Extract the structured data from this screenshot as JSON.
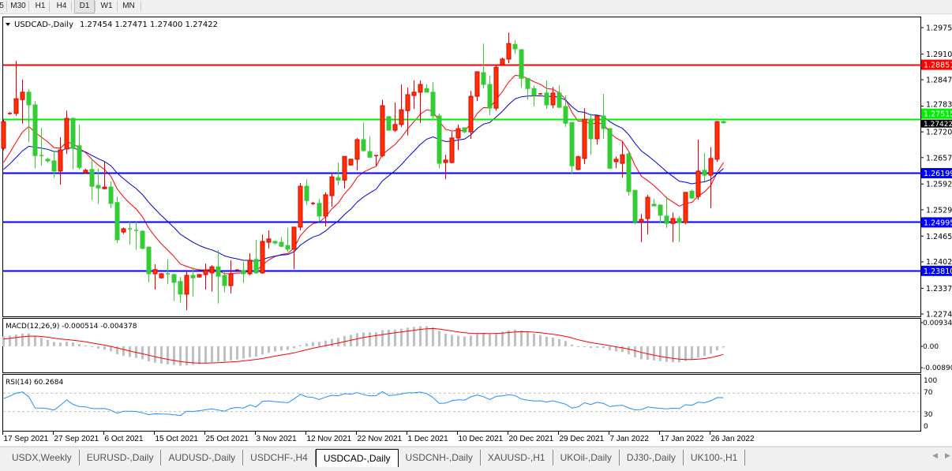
{
  "toolbar": {
    "timeframes": [
      {
        "label": "5",
        "active": false
      },
      {
        "label": "M30",
        "active": false
      },
      {
        "label": "H1",
        "active": false
      },
      {
        "label": "H4",
        "active": false
      },
      {
        "label": "D1",
        "active": true
      },
      {
        "label": "W1",
        "active": false
      },
      {
        "label": "MN",
        "active": false
      }
    ]
  },
  "chart_data": {
    "type": "candlestick",
    "symbol_header": "USDCAD-,Daily",
    "ohlc_readout": "1.27454 1.27471 1.27400 1.27422",
    "current_price": "1.27422",
    "colors": {
      "bull": "#ff3300",
      "bull_border": "#e00000",
      "bear": "#33cc33",
      "bear_border": "#33cc33",
      "fast_ma": "#ff0000",
      "slow_ma": "#0000cc"
    },
    "ylim": [
      1.22745,
      1.2975
    ],
    "y_ticks": [
      "1.29750",
      "1.29105",
      "1.28475",
      "1.27830",
      "1.27200",
      "1.26570",
      "1.25925",
      "1.25295",
      "1.24650",
      "1.24020",
      "1.23375",
      "1.22745"
    ],
    "horizontal_lines": [
      {
        "price": "1.28851",
        "color": "#ff0000"
      },
      {
        "price": "1.27515",
        "color": "#00ee00"
      },
      {
        "price": "1.26199",
        "color": "#0000ff"
      },
      {
        "price": "1.24995",
        "color": "#0000ff"
      },
      {
        "price": "1.23810",
        "color": "#0000ff"
      }
    ],
    "x_labels": [
      {
        "label": "17 Sep 2021",
        "bar": 0
      },
      {
        "label": "27 Sep 2021",
        "bar": 8
      },
      {
        "label": "6 Oct 2021",
        "bar": 16
      },
      {
        "label": "15 Oct 2021",
        "bar": 24
      },
      {
        "label": "25 Oct 2021",
        "bar": 32
      },
      {
        "label": "3 Nov 2021",
        "bar": 40
      },
      {
        "label": "12 Nov 2021",
        "bar": 48
      },
      {
        "label": "22 Nov 2021",
        "bar": 56
      },
      {
        "label": "1 Dec 2021",
        "bar": 64
      },
      {
        "label": "10 Dec 2021",
        "bar": 72
      },
      {
        "label": "20 Dec 2021",
        "bar": 80
      },
      {
        "label": "29 Dec 2021",
        "bar": 88
      },
      {
        "label": "7 Jan 2022",
        "bar": 96
      },
      {
        "label": "17 Jan 2022",
        "bar": 104
      },
      {
        "label": "26 Jan 2022",
        "bar": 112
      }
    ],
    "candles_ohlc": [
      [
        1.268,
        1.275,
        1.2675,
        1.2745
      ],
      [
        1.2765,
        1.2768,
        1.2762,
        1.2765
      ],
      [
        1.2765,
        1.2894,
        1.2759,
        1.2801
      ],
      [
        1.2799,
        1.2848,
        1.274,
        1.2817
      ],
      [
        1.2817,
        1.2824,
        1.2695,
        1.2786
      ],
      [
        1.2786,
        1.2795,
        1.2631,
        1.2662
      ],
      [
        1.2662,
        1.273,
        1.2637,
        1.266
      ],
      [
        1.2653,
        1.2657,
        1.2645,
        1.2649
      ],
      [
        1.2649,
        1.2672,
        1.2608,
        1.2624
      ],
      [
        1.2624,
        1.2707,
        1.2591,
        1.2676
      ],
      [
        1.2678,
        1.2772,
        1.2666,
        1.2753
      ],
      [
        1.2753,
        1.2755,
        1.2628,
        1.268
      ],
      [
        1.2686,
        1.2738,
        1.2628,
        1.2633
      ],
      [
        1.262,
        1.263,
        1.2618,
        1.2626
      ],
      [
        1.2628,
        1.2655,
        1.2554,
        1.2587
      ],
      [
        1.2589,
        1.263,
        1.2543,
        1.2583
      ],
      [
        1.2581,
        1.2647,
        1.2579,
        1.2585
      ],
      [
        1.2585,
        1.2599,
        1.2533,
        1.2545
      ],
      [
        1.2547,
        1.2562,
        1.2448,
        1.2456
      ],
      [
        1.2475,
        1.2486,
        1.247,
        1.2483
      ],
      [
        1.2483,
        1.25,
        1.2444,
        1.2481
      ],
      [
        1.2479,
        1.25,
        1.2431,
        1.2477
      ],
      [
        1.2477,
        1.2479,
        1.2433,
        1.2435
      ],
      [
        1.2438,
        1.244,
        1.2352,
        1.2373
      ],
      [
        1.2373,
        1.2396,
        1.2334,
        1.2383
      ],
      [
        1.2363,
        1.2375,
        1.2361,
        1.2373
      ],
      [
        1.2373,
        1.2408,
        1.2348,
        1.2371
      ],
      [
        1.2371,
        1.2373,
        1.2307,
        1.2352
      ],
      [
        1.2354,
        1.2365,
        1.2303,
        1.2323
      ],
      [
        1.2323,
        1.2382,
        1.2284,
        1.2369
      ],
      [
        1.2369,
        1.2388,
        1.2317,
        1.2363
      ],
      [
        1.2365,
        1.2373,
        1.2363,
        1.2371
      ],
      [
        1.2371,
        1.2398,
        1.2334,
        1.2381
      ],
      [
        1.2375,
        1.2394,
        1.2329,
        1.239
      ],
      [
        1.239,
        1.2431,
        1.23,
        1.2367
      ],
      [
        1.2369,
        1.2379,
        1.2327,
        1.2344
      ],
      [
        1.2344,
        1.2406,
        1.2325,
        1.2373
      ],
      [
        1.2382,
        1.2384,
        1.238,
        1.2382
      ],
      [
        1.2381,
        1.2402,
        1.235,
        1.2373
      ],
      [
        1.2373,
        1.2423,
        1.2369,
        1.2406
      ],
      [
        1.2408,
        1.2456,
        1.2373,
        1.2375
      ],
      [
        1.2375,
        1.2469,
        1.2373,
        1.2452
      ],
      [
        1.245,
        1.2479,
        1.2435,
        1.2458
      ],
      [
        1.2452,
        1.2454,
        1.2444,
        1.2448
      ],
      [
        1.245,
        1.2463,
        1.2438,
        1.244
      ],
      [
        1.2442,
        1.2485,
        1.2427,
        1.2433
      ],
      [
        1.2433,
        1.2487,
        1.2384,
        1.2487
      ],
      [
        1.2487,
        1.2595,
        1.2479,
        1.2587
      ],
      [
        1.2587,
        1.2604,
        1.2541,
        1.2552
      ],
      [
        1.2545,
        1.2549,
        1.2541,
        1.2545
      ],
      [
        1.2545,
        1.2556,
        1.2502,
        1.2514
      ],
      [
        1.2514,
        1.2572,
        1.2489,
        1.2566
      ],
      [
        1.2564,
        1.262,
        1.2537,
        1.261
      ],
      [
        1.2608,
        1.2645,
        1.2589,
        1.2602
      ],
      [
        1.2602,
        1.266,
        1.2581,
        1.266
      ],
      [
        1.2639,
        1.2655,
        1.2637,
        1.2653
      ],
      [
        1.2653,
        1.2705,
        1.2626,
        1.2701
      ],
      [
        1.2701,
        1.2743,
        1.2672,
        1.2674
      ],
      [
        1.2672,
        1.2709,
        1.2656,
        1.2658
      ],
      [
        1.266,
        1.2662,
        1.2637,
        1.2662
      ],
      [
        1.2662,
        1.2799,
        1.2658,
        1.2784
      ],
      [
        1.2757,
        1.2759,
        1.2724,
        1.2724
      ],
      [
        1.2724,
        1.2792,
        1.272,
        1.2738
      ],
      [
        1.2738,
        1.2836,
        1.2732,
        1.2774
      ],
      [
        1.2772,
        1.2828,
        1.2711,
        1.2811
      ],
      [
        1.2809,
        1.2846,
        1.2776,
        1.2817
      ],
      [
        1.2817,
        1.2846,
        1.2742,
        1.2836
      ],
      [
        1.2826,
        1.2836,
        1.2817,
        1.2817
      ],
      [
        1.2817,
        1.2842,
        1.2753,
        1.2759
      ],
      [
        1.2759,
        1.2765,
        1.2631,
        1.2643
      ],
      [
        1.2645,
        1.2664,
        1.2604,
        1.2651
      ],
      [
        1.2645,
        1.272,
        1.2643,
        1.2705
      ],
      [
        1.2705,
        1.2738,
        1.2676,
        1.2728
      ],
      [
        1.273,
        1.273,
        1.2716,
        1.272
      ],
      [
        1.272,
        1.282,
        1.2703,
        1.2807
      ],
      [
        1.2807,
        1.2867,
        1.2795,
        1.2867
      ],
      [
        1.2865,
        1.2936,
        1.2826,
        1.2836
      ],
      [
        1.2836,
        1.2857,
        1.2761,
        1.2778
      ],
      [
        1.2778,
        1.2882,
        1.2772,
        1.2878
      ],
      [
        1.2884,
        1.2902,
        1.2884,
        1.2898
      ],
      [
        1.2898,
        1.2963,
        1.2888,
        1.2936
      ],
      [
        1.2934,
        1.2944,
        1.2911,
        1.2923
      ],
      [
        1.2921,
        1.2923,
        1.2828,
        1.2851
      ],
      [
        1.2851,
        1.2851,
        1.2799,
        1.2826
      ],
      [
        1.2826,
        1.2834,
        1.2782,
        1.2809
      ],
      [
        1.2813,
        1.2815,
        1.2811,
        1.2813
      ],
      [
        1.2815,
        1.2846,
        1.2776,
        1.2786
      ],
      [
        1.2786,
        1.283,
        1.2778,
        1.2815
      ],
      [
        1.2815,
        1.2834,
        1.278,
        1.278
      ],
      [
        1.2782,
        1.2809,
        1.2732,
        1.2741
      ],
      [
        1.2743,
        1.2743,
        1.2618,
        1.2637
      ],
      [
        1.2628,
        1.2662,
        1.2626,
        1.2659
      ],
      [
        1.2655,
        1.2778,
        1.2641,
        1.2751
      ],
      [
        1.2751,
        1.2765,
        1.2664,
        1.2703
      ],
      [
        1.2703,
        1.2759,
        1.2689,
        1.2759
      ],
      [
        1.2759,
        1.2813,
        1.2703,
        1.2728
      ],
      [
        1.2728,
        1.2728,
        1.2629,
        1.2631
      ],
      [
        1.2647,
        1.266,
        1.2631,
        1.2653
      ],
      [
        1.2643,
        1.2697,
        1.2608,
        1.2664
      ],
      [
        1.2666,
        1.267,
        1.2564,
        1.2574
      ],
      [
        1.2577,
        1.2577,
        1.2494,
        1.25
      ],
      [
        1.25,
        1.2519,
        1.245,
        1.2506
      ],
      [
        1.2508,
        1.2566,
        1.2469,
        1.256
      ],
      [
        1.2543,
        1.2556,
        1.2539,
        1.2539
      ],
      [
        1.2541,
        1.2541,
        1.2498,
        1.2516
      ],
      [
        1.2514,
        1.2562,
        1.2485,
        1.2496
      ],
      [
        1.2496,
        1.2523,
        1.245,
        1.2508
      ],
      [
        1.2508,
        1.2514,
        1.245,
        1.2498
      ],
      [
        1.2498,
        1.2572,
        1.2494,
        1.2572
      ],
      [
        1.2575,
        1.2579,
        1.2558,
        1.2558
      ],
      [
        1.2562,
        1.2701,
        1.2554,
        1.2624
      ],
      [
        1.2626,
        1.2668,
        1.2599,
        1.2614
      ],
      [
        1.2614,
        1.2683,
        1.2533,
        1.2655
      ],
      [
        1.2653,
        1.2747,
        1.2647,
        1.2745
      ],
      [
        1.27454,
        1.27471,
        1.274,
        1.27422
      ]
    ],
    "macd": {
      "label": "MACD(12,26,9) -0.000514 -0.004378",
      "y_ticks": [
        "0.009345",
        "0.00",
        "-0.008900"
      ],
      "ylim": [
        -0.0089,
        0.009345
      ],
      "histogram_color": "#c0c0c0",
      "signal_color": "#ff0000"
    },
    "rsi": {
      "label": "RSI(14) 60.2684",
      "y_ticks": [
        "100",
        "70",
        "30",
        "0"
      ],
      "ylim": [
        0,
        100
      ],
      "levels": [
        70,
        30
      ],
      "line_color": "#1e90ff"
    }
  },
  "tabs": [
    {
      "label": "USDX,Weekly",
      "active": false
    },
    {
      "label": "EURUSD-,Daily",
      "active": false
    },
    {
      "label": "AUDUSD-,Daily",
      "active": false
    },
    {
      "label": "USDCHF-,H4",
      "active": false
    },
    {
      "label": "USDCAD-,Daily",
      "active": true
    },
    {
      "label": "USDCNH-,Daily",
      "active": false
    },
    {
      "label": "XAUUSD-,H1",
      "active": false
    },
    {
      "label": "UKOil-,Daily",
      "active": false
    },
    {
      "label": "DJ30-,Daily",
      "active": false
    },
    {
      "label": "UK100-,H1",
      "active": false
    }
  ],
  "tab_scroll": {
    "left_icon": "triangle-left",
    "right_icon": "triangle-right"
  }
}
